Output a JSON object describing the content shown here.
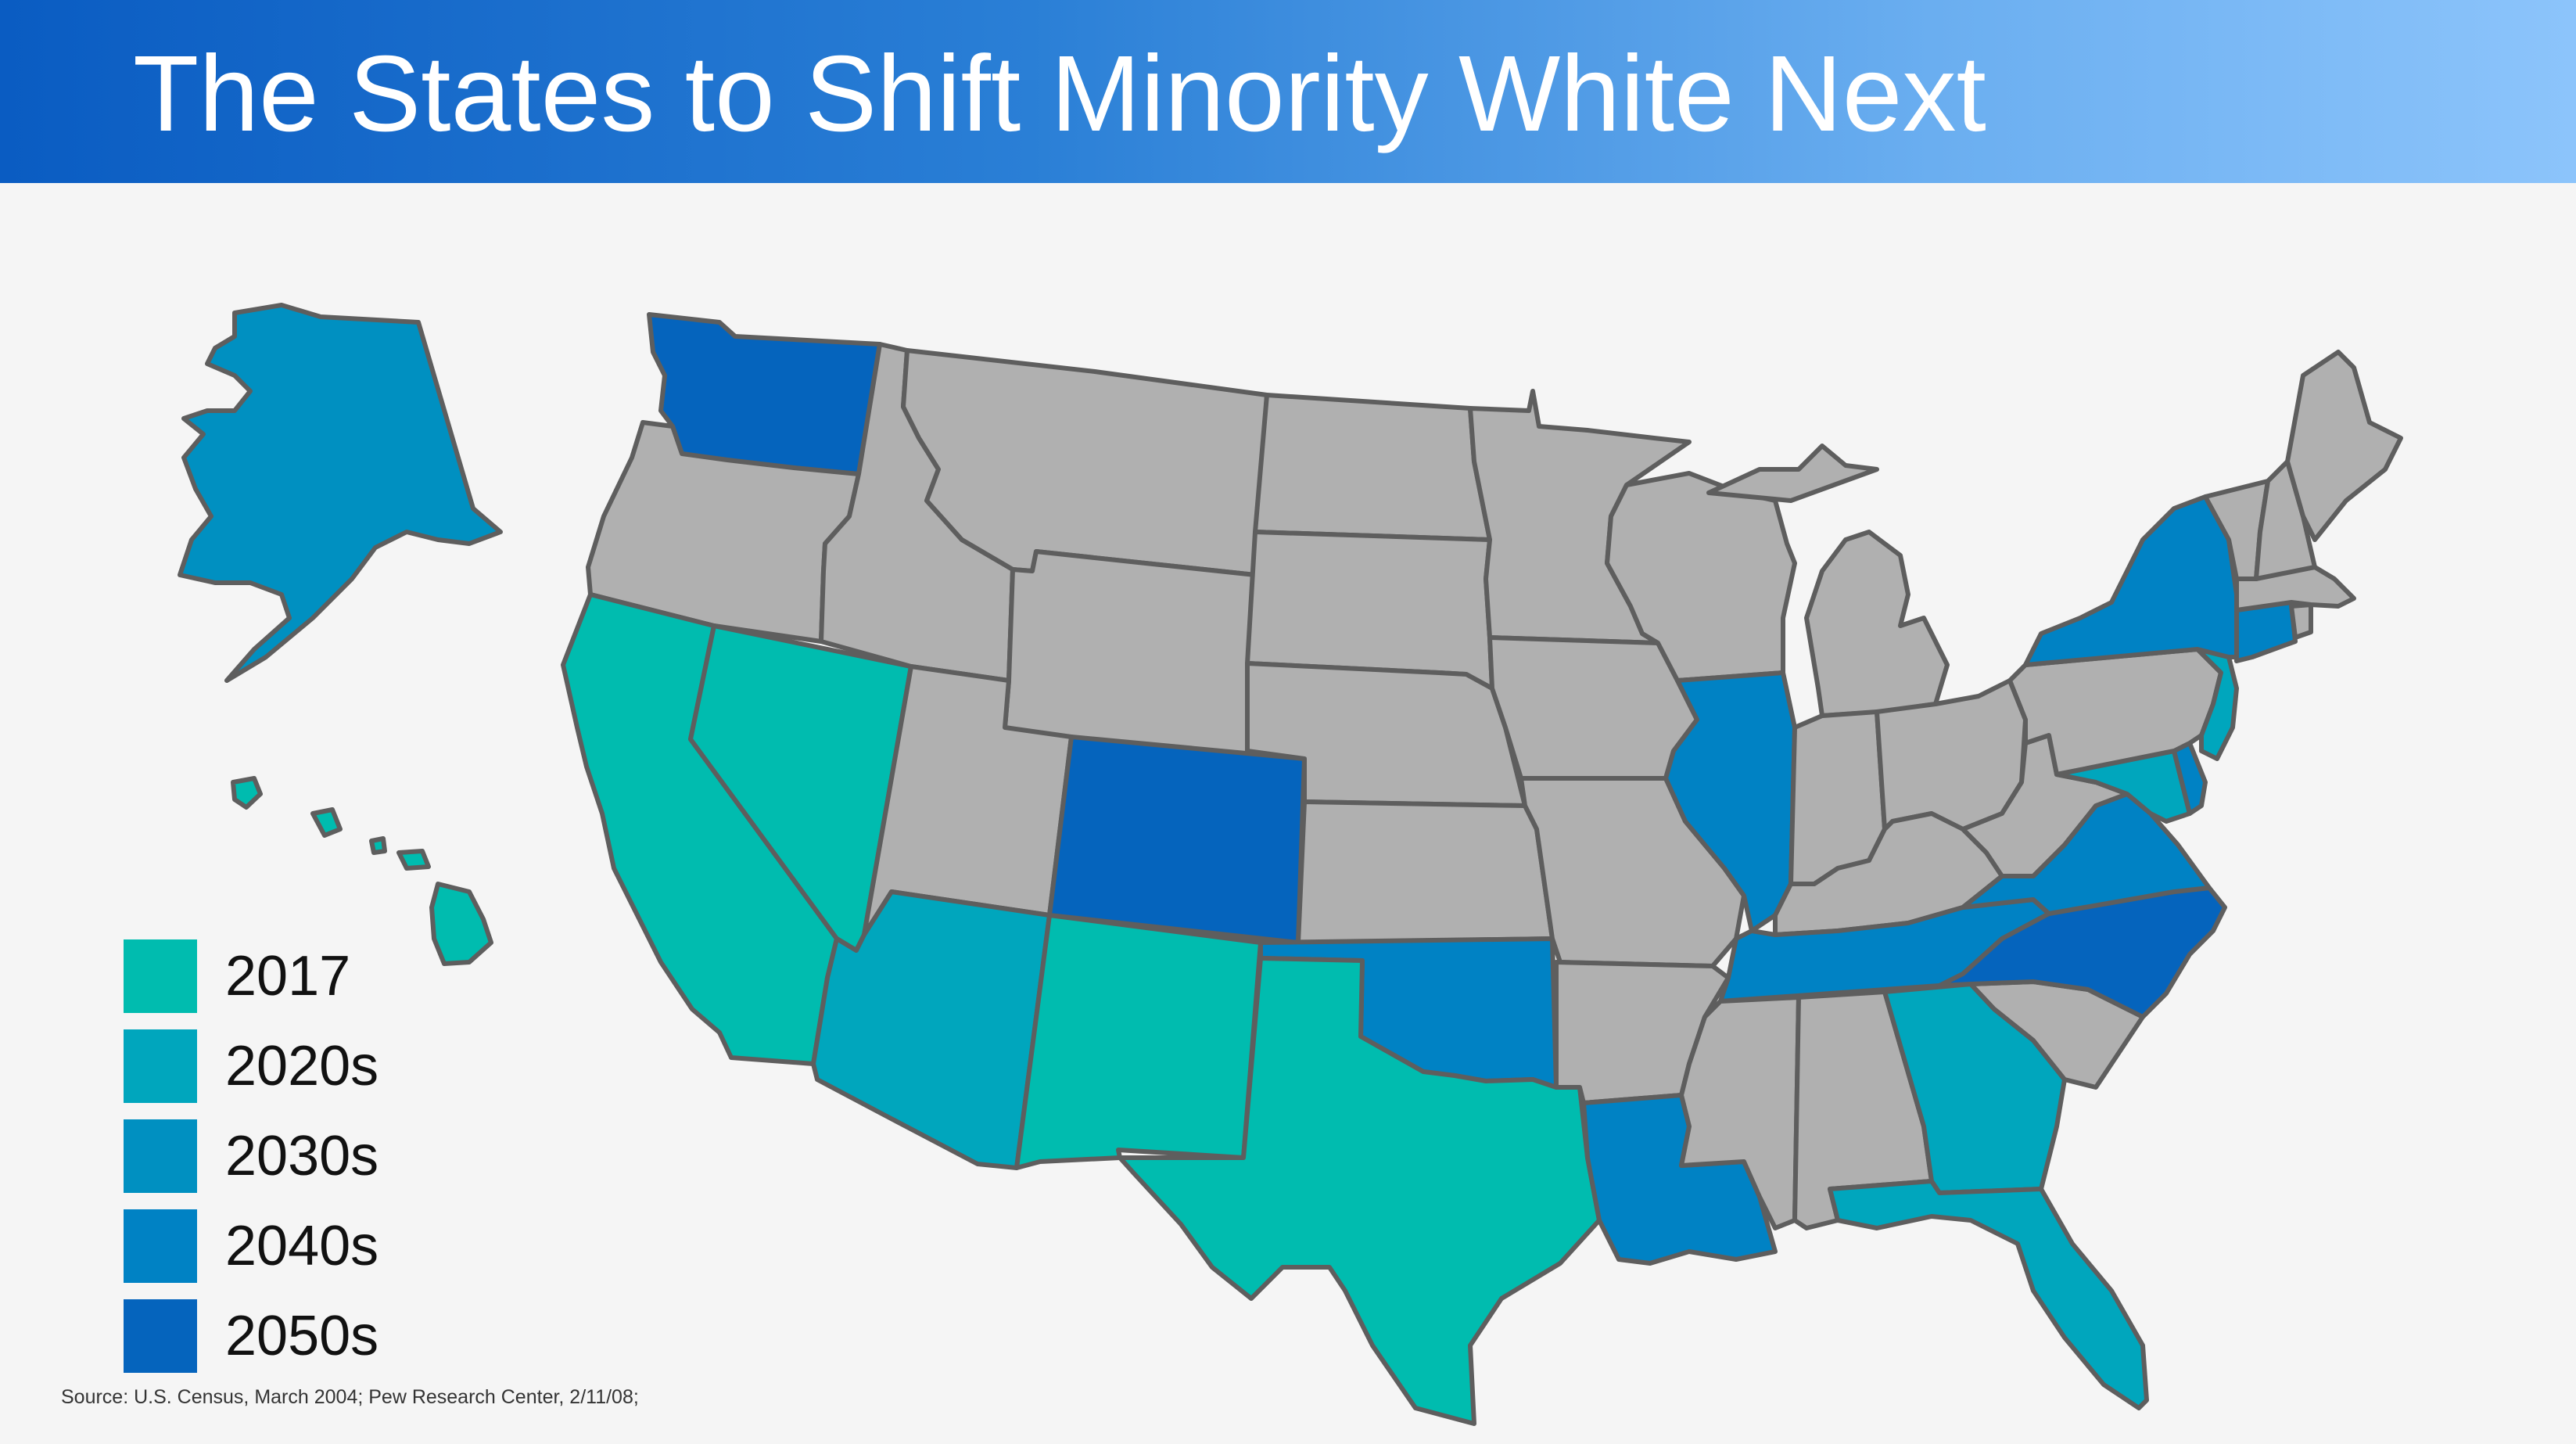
{
  "title": "The States to Shift Minority White Next",
  "source": "Source: U.S. Census, March 2004; Pew Research Center, 2/11/08;",
  "colors": {
    "2017": "#00bcaf",
    "2020s": "#00a6bd",
    "2030s": "#0090c1",
    "2040s": "#0082c4",
    "2050s": "#0564bd",
    "none": "#b0b0b0",
    "border": "#5e5e5e"
  },
  "legend": [
    {
      "label": "2017",
      "category": "2017"
    },
    {
      "label": "2020s",
      "category": "2020s"
    },
    {
      "label": "2030s",
      "category": "2030s"
    },
    {
      "label": "2040s",
      "category": "2040s"
    },
    {
      "label": "2050s",
      "category": "2050s"
    }
  ],
  "states": [
    {
      "name": "Washington",
      "category": "2050s"
    },
    {
      "name": "Oregon",
      "category": "none"
    },
    {
      "name": "California",
      "category": "2017"
    },
    {
      "name": "Nevada",
      "category": "2017"
    },
    {
      "name": "Idaho",
      "category": "none"
    },
    {
      "name": "Montana",
      "category": "none"
    },
    {
      "name": "Wyoming",
      "category": "none"
    },
    {
      "name": "Utah",
      "category": "none"
    },
    {
      "name": "Arizona",
      "category": "2020s"
    },
    {
      "name": "Colorado",
      "category": "2050s"
    },
    {
      "name": "New Mexico",
      "category": "2017"
    },
    {
      "name": "North Dakota",
      "category": "none"
    },
    {
      "name": "South Dakota",
      "category": "none"
    },
    {
      "name": "Nebraska",
      "category": "none"
    },
    {
      "name": "Kansas",
      "category": "none"
    },
    {
      "name": "Oklahoma",
      "category": "2040s"
    },
    {
      "name": "Texas",
      "category": "2017"
    },
    {
      "name": "Minnesota",
      "category": "none"
    },
    {
      "name": "Iowa",
      "category": "none"
    },
    {
      "name": "Missouri",
      "category": "none"
    },
    {
      "name": "Arkansas",
      "category": "none"
    },
    {
      "name": "Louisiana",
      "category": "2040s"
    },
    {
      "name": "Wisconsin",
      "category": "none"
    },
    {
      "name": "Illinois",
      "category": "2040s"
    },
    {
      "name": "Michigan",
      "category": "none"
    },
    {
      "name": "Indiana",
      "category": "none"
    },
    {
      "name": "Ohio",
      "category": "none"
    },
    {
      "name": "Kentucky",
      "category": "none"
    },
    {
      "name": "Tennessee",
      "category": "2040s"
    },
    {
      "name": "Mississippi",
      "category": "none"
    },
    {
      "name": "Alabama",
      "category": "none"
    },
    {
      "name": "Georgia",
      "category": "2020s"
    },
    {
      "name": "Florida",
      "category": "2020s"
    },
    {
      "name": "South Carolina",
      "category": "none"
    },
    {
      "name": "North Carolina",
      "category": "2050s"
    },
    {
      "name": "Virginia",
      "category": "2040s"
    },
    {
      "name": "West Virginia",
      "category": "none"
    },
    {
      "name": "Maryland",
      "category": "2020s"
    },
    {
      "name": "Delaware",
      "category": "2040s"
    },
    {
      "name": "Pennsylvania",
      "category": "none"
    },
    {
      "name": "New Jersey",
      "category": "2020s"
    },
    {
      "name": "New York",
      "category": "2040s"
    },
    {
      "name": "Connecticut",
      "category": "2040s"
    },
    {
      "name": "Rhode Island",
      "category": "none"
    },
    {
      "name": "Massachusetts",
      "category": "none"
    },
    {
      "name": "Vermont",
      "category": "none"
    },
    {
      "name": "New Hampshire",
      "category": "none"
    },
    {
      "name": "Maine",
      "category": "none"
    },
    {
      "name": "Alaska",
      "category": "2030s"
    },
    {
      "name": "Hawaii",
      "category": "2017"
    }
  ]
}
